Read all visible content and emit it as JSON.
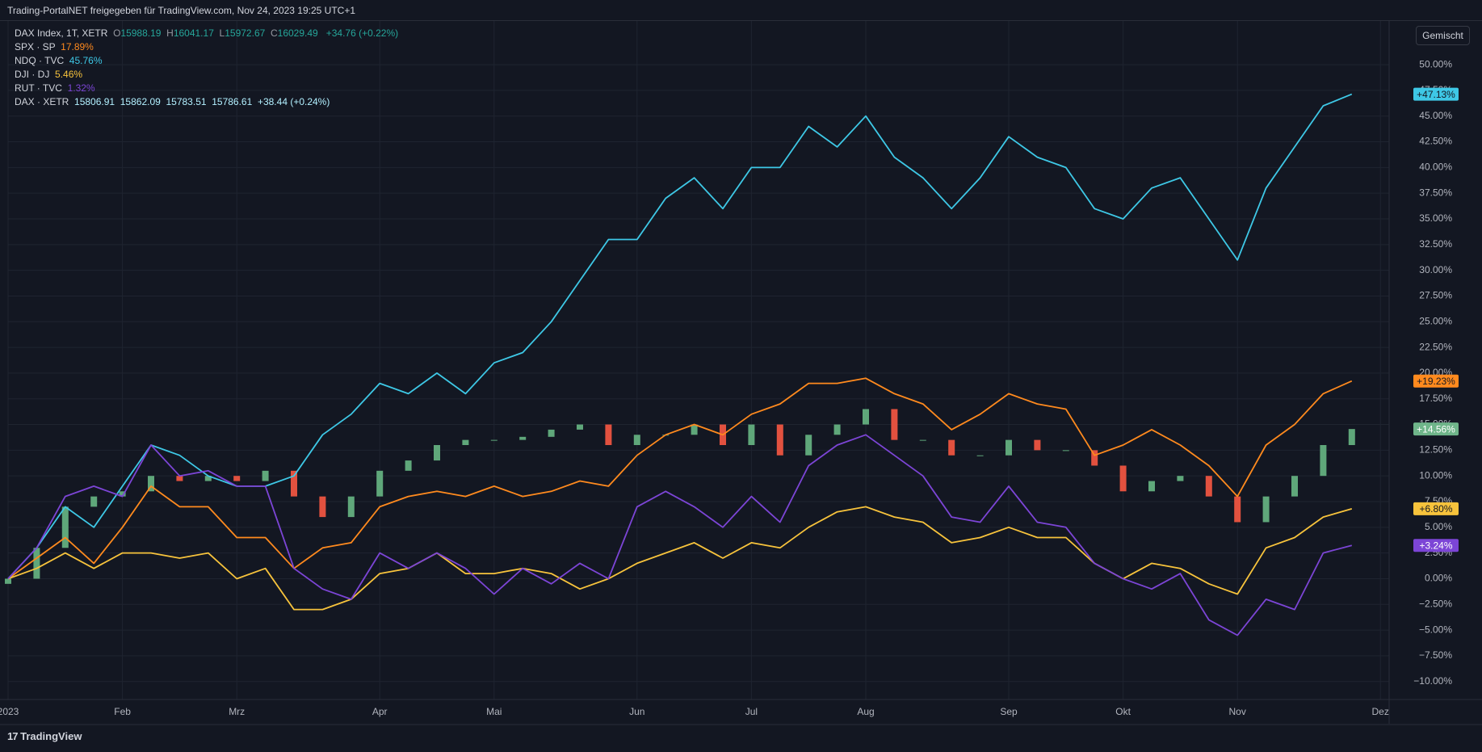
{
  "top_bar": {
    "text": "Trading-PortalNET freigegeben für TradingView.com, Nov 24, 2023 19:25 UTC+1"
  },
  "footer": {
    "logo": "TradingView"
  },
  "chart_data": {
    "type": "line",
    "mode_button": "Gemischt",
    "header": {
      "title": "DAX Index, 1T, XETR",
      "ohlc": [
        {
          "label": "O",
          "value": "15988.19"
        },
        {
          "label": "H",
          "value": "16041.17"
        },
        {
          "label": "L",
          "value": "15972.67"
        },
        {
          "label": "C",
          "value": "16029.49"
        }
      ],
      "change": "+34.76 (+0.22%)"
    },
    "categories": [
      "2023",
      null,
      null,
      null,
      "Feb",
      null,
      null,
      null,
      "Mrz",
      null,
      null,
      null,
      null,
      "Apr",
      null,
      null,
      null,
      "Mai",
      null,
      null,
      null,
      null,
      "Jun",
      null,
      null,
      null,
      "Jul",
      null,
      null,
      null,
      "Aug",
      null,
      null,
      null,
      null,
      "Sep",
      null,
      null,
      null,
      "Okt",
      null,
      null,
      null,
      "Nov",
      null,
      null,
      null,
      null,
      "Dez"
    ],
    "ylim": [
      -11.75,
      54.25
    ],
    "yticks": [
      {
        "value": -10,
        "label": "−10.00%"
      },
      {
        "value": -7.5,
        "label": "−7.50%"
      },
      {
        "value": -5,
        "label": "−5.00%"
      },
      {
        "value": -2.5,
        "label": "−2.50%"
      },
      {
        "value": 0,
        "label": "0.00%"
      },
      {
        "value": 2.5,
        "label": "2.50%"
      },
      {
        "value": 5,
        "label": "5.00%"
      },
      {
        "value": 7.5,
        "label": "7.50%"
      },
      {
        "value": 10,
        "label": "10.00%"
      },
      {
        "value": 12.5,
        "label": "12.50%"
      },
      {
        "value": 15,
        "label": "15.00%"
      },
      {
        "value": 17.5,
        "label": "17.50%"
      },
      {
        "value": 20,
        "label": "20.00%"
      },
      {
        "value": 22.5,
        "label": "22.50%"
      },
      {
        "value": 25,
        "label": "25.00%"
      },
      {
        "value": 27.5,
        "label": "27.50%"
      },
      {
        "value": 30,
        "label": "30.00%"
      },
      {
        "value": 32.5,
        "label": "32.50%"
      },
      {
        "value": 35,
        "label": "35.00%"
      },
      {
        "value": 37.5,
        "label": "37.50%"
      },
      {
        "value": 40,
        "label": "40.00%"
      },
      {
        "value": 42.5,
        "label": "42.50%"
      },
      {
        "value": 45,
        "label": "45.00%"
      },
      {
        "value": 47.5,
        "label": "47.50%"
      },
      {
        "value": 50,
        "label": "50.00%"
      }
    ],
    "grid": true,
    "series": [
      {
        "name": "SPX · SP",
        "legend_value": "17.89%",
        "color": "#ff8a1e",
        "text_color": "#131722",
        "values": [
          0,
          2,
          4,
          1.5,
          5,
          9,
          7,
          7,
          4,
          4,
          1,
          3,
          3.5,
          7,
          8,
          8.5,
          8,
          9,
          8,
          8.5,
          9.5,
          9,
          12,
          14,
          15,
          14,
          16,
          17,
          19,
          19,
          19.5,
          18,
          17,
          14.5,
          16,
          18,
          17,
          16.5,
          12,
          13,
          14.5,
          13,
          11,
          8,
          13,
          15,
          18,
          19.23,
          null
        ],
        "value_labels": [
          null,
          null,
          null,
          null,
          null,
          null,
          null,
          null,
          null,
          null,
          null,
          null,
          null,
          null,
          null,
          null,
          null,
          null,
          null,
          null,
          null,
          null,
          null,
          null,
          null,
          null,
          null,
          null,
          null,
          null,
          null,
          null,
          null,
          null,
          null,
          null,
          null,
          null,
          null,
          null,
          null,
          null,
          null,
          null,
          null,
          null,
          null,
          "+19.23%",
          null
        ]
      },
      {
        "name": "NDQ · TVC",
        "legend_value": "45.76%",
        "color": "#3ec8e6",
        "text_color": "#131722",
        "values": [
          0,
          3,
          7,
          5,
          9,
          13,
          12,
          10,
          9,
          9,
          10,
          14,
          16,
          19,
          18,
          20,
          18,
          21,
          22,
          25,
          29,
          33,
          33,
          37,
          39,
          36,
          40,
          40,
          44,
          42,
          45,
          41,
          39,
          36,
          39,
          43,
          41,
          40,
          36,
          35,
          38,
          39,
          35,
          31,
          38,
          42,
          46,
          47.13,
          null
        ],
        "value_labels": [
          null,
          null,
          null,
          null,
          null,
          null,
          null,
          null,
          null,
          null,
          null,
          null,
          null,
          null,
          null,
          null,
          null,
          null,
          null,
          null,
          null,
          null,
          null,
          null,
          null,
          null,
          null,
          null,
          null,
          null,
          null,
          null,
          null,
          null,
          null,
          null,
          null,
          null,
          null,
          null,
          null,
          null,
          null,
          null,
          null,
          null,
          null,
          "+47.13%",
          null
        ]
      },
      {
        "name": "DJI · DJ",
        "legend_value": "5.46%",
        "color": "#f7c33c",
        "text_color": "#131722",
        "values": [
          0,
          1,
          2.5,
          1,
          2.5,
          2.5,
          2,
          2.5,
          0,
          1,
          -3,
          -3,
          -2,
          0.5,
          1,
          2.5,
          0.5,
          0.5,
          1,
          0.5,
          -1,
          0,
          1.5,
          2.5,
          3.5,
          2,
          3.5,
          3,
          5,
          6.5,
          7,
          6,
          5.5,
          3.5,
          4,
          5,
          4,
          4,
          1.5,
          0,
          1.5,
          1,
          -0.5,
          -1.5,
          3,
          4,
          6,
          6.8,
          null
        ],
        "value_labels": [
          null,
          null,
          null,
          null,
          null,
          null,
          null,
          null,
          null,
          null,
          null,
          null,
          null,
          null,
          null,
          null,
          null,
          null,
          null,
          null,
          null,
          null,
          null,
          null,
          null,
          null,
          null,
          null,
          null,
          null,
          null,
          null,
          null,
          null,
          null,
          null,
          null,
          null,
          null,
          null,
          null,
          null,
          null,
          null,
          null,
          null,
          null,
          "+6.80%",
          null
        ]
      },
      {
        "name": "RUT · TVC",
        "legend_value": "1.32%",
        "color": "#7c45d6",
        "text_color": "#ffffff",
        "values": [
          0,
          3,
          8,
          9,
          8,
          13,
          10,
          10.5,
          9,
          9,
          1,
          -1,
          -2,
          2.5,
          1,
          2.5,
          1,
          -1.5,
          1,
          -0.5,
          1.5,
          0,
          7,
          8.5,
          7,
          5,
          8,
          5.5,
          11,
          13,
          14,
          12,
          10,
          6,
          5.5,
          9,
          5.5,
          5,
          1.5,
          0,
          -1,
          0.5,
          -4,
          -5.5,
          -2,
          -3,
          2.5,
          3.24,
          null
        ],
        "value_labels": [
          null,
          null,
          null,
          null,
          null,
          null,
          null,
          null,
          null,
          null,
          null,
          null,
          null,
          null,
          null,
          null,
          null,
          null,
          null,
          null,
          null,
          null,
          null,
          null,
          null,
          null,
          null,
          null,
          null,
          null,
          null,
          null,
          null,
          null,
          null,
          null,
          null,
          null,
          null,
          null,
          null,
          null,
          null,
          null,
          null,
          null,
          null,
          "+3.24%",
          null
        ]
      }
    ],
    "candles": {
      "name": "DAX · XETR",
      "legend_values": [
        "15806.91",
        "15862.09",
        "15783.51",
        "15786.61",
        "+38.44 (+0.24%)"
      ],
      "up_color": "#5fa77a",
      "down_color": "#e2513f",
      "label_color": "#6fb58a",
      "open": [
        -0.5,
        0,
        3,
        7,
        8,
        8.5,
        10,
        9.5,
        10,
        9.5,
        10.5,
        8,
        6,
        8,
        10.5,
        11.5,
        13,
        13.5,
        13.5,
        13.8,
        14.5,
        15,
        13,
        14,
        14,
        15,
        13,
        15,
        12,
        14,
        15,
        16.5,
        13.5,
        13.5,
        12,
        12,
        13.5,
        12.5,
        12.5,
        11,
        8.5,
        9.5,
        10,
        8,
        5.5,
        8,
        10,
        13,
        null
      ],
      "close": [
        0,
        3,
        7,
        8,
        8.5,
        10,
        9.5,
        10,
        9.5,
        10.5,
        8,
        6,
        8,
        10.5,
        11.5,
        13,
        13.5,
        13.5,
        13.8,
        14.5,
        15,
        13,
        14,
        14,
        15,
        13,
        15,
        12,
        14,
        15,
        16.5,
        13.5,
        13.5,
        12,
        12,
        13.5,
        12.5,
        12.5,
        11,
        8.5,
        9.5,
        10,
        8,
        5.5,
        8,
        10,
        13,
        14.56,
        null
      ],
      "value_labels": [
        null,
        null,
        null,
        null,
        null,
        null,
        null,
        null,
        null,
        null,
        null,
        null,
        null,
        null,
        null,
        null,
        null,
        null,
        null,
        null,
        null,
        null,
        null,
        null,
        null,
        null,
        null,
        null,
        null,
        null,
        null,
        null,
        null,
        null,
        null,
        null,
        null,
        null,
        null,
        null,
        null,
        null,
        null,
        null,
        null,
        null,
        null,
        "+14.56%",
        null
      ]
    }
  }
}
